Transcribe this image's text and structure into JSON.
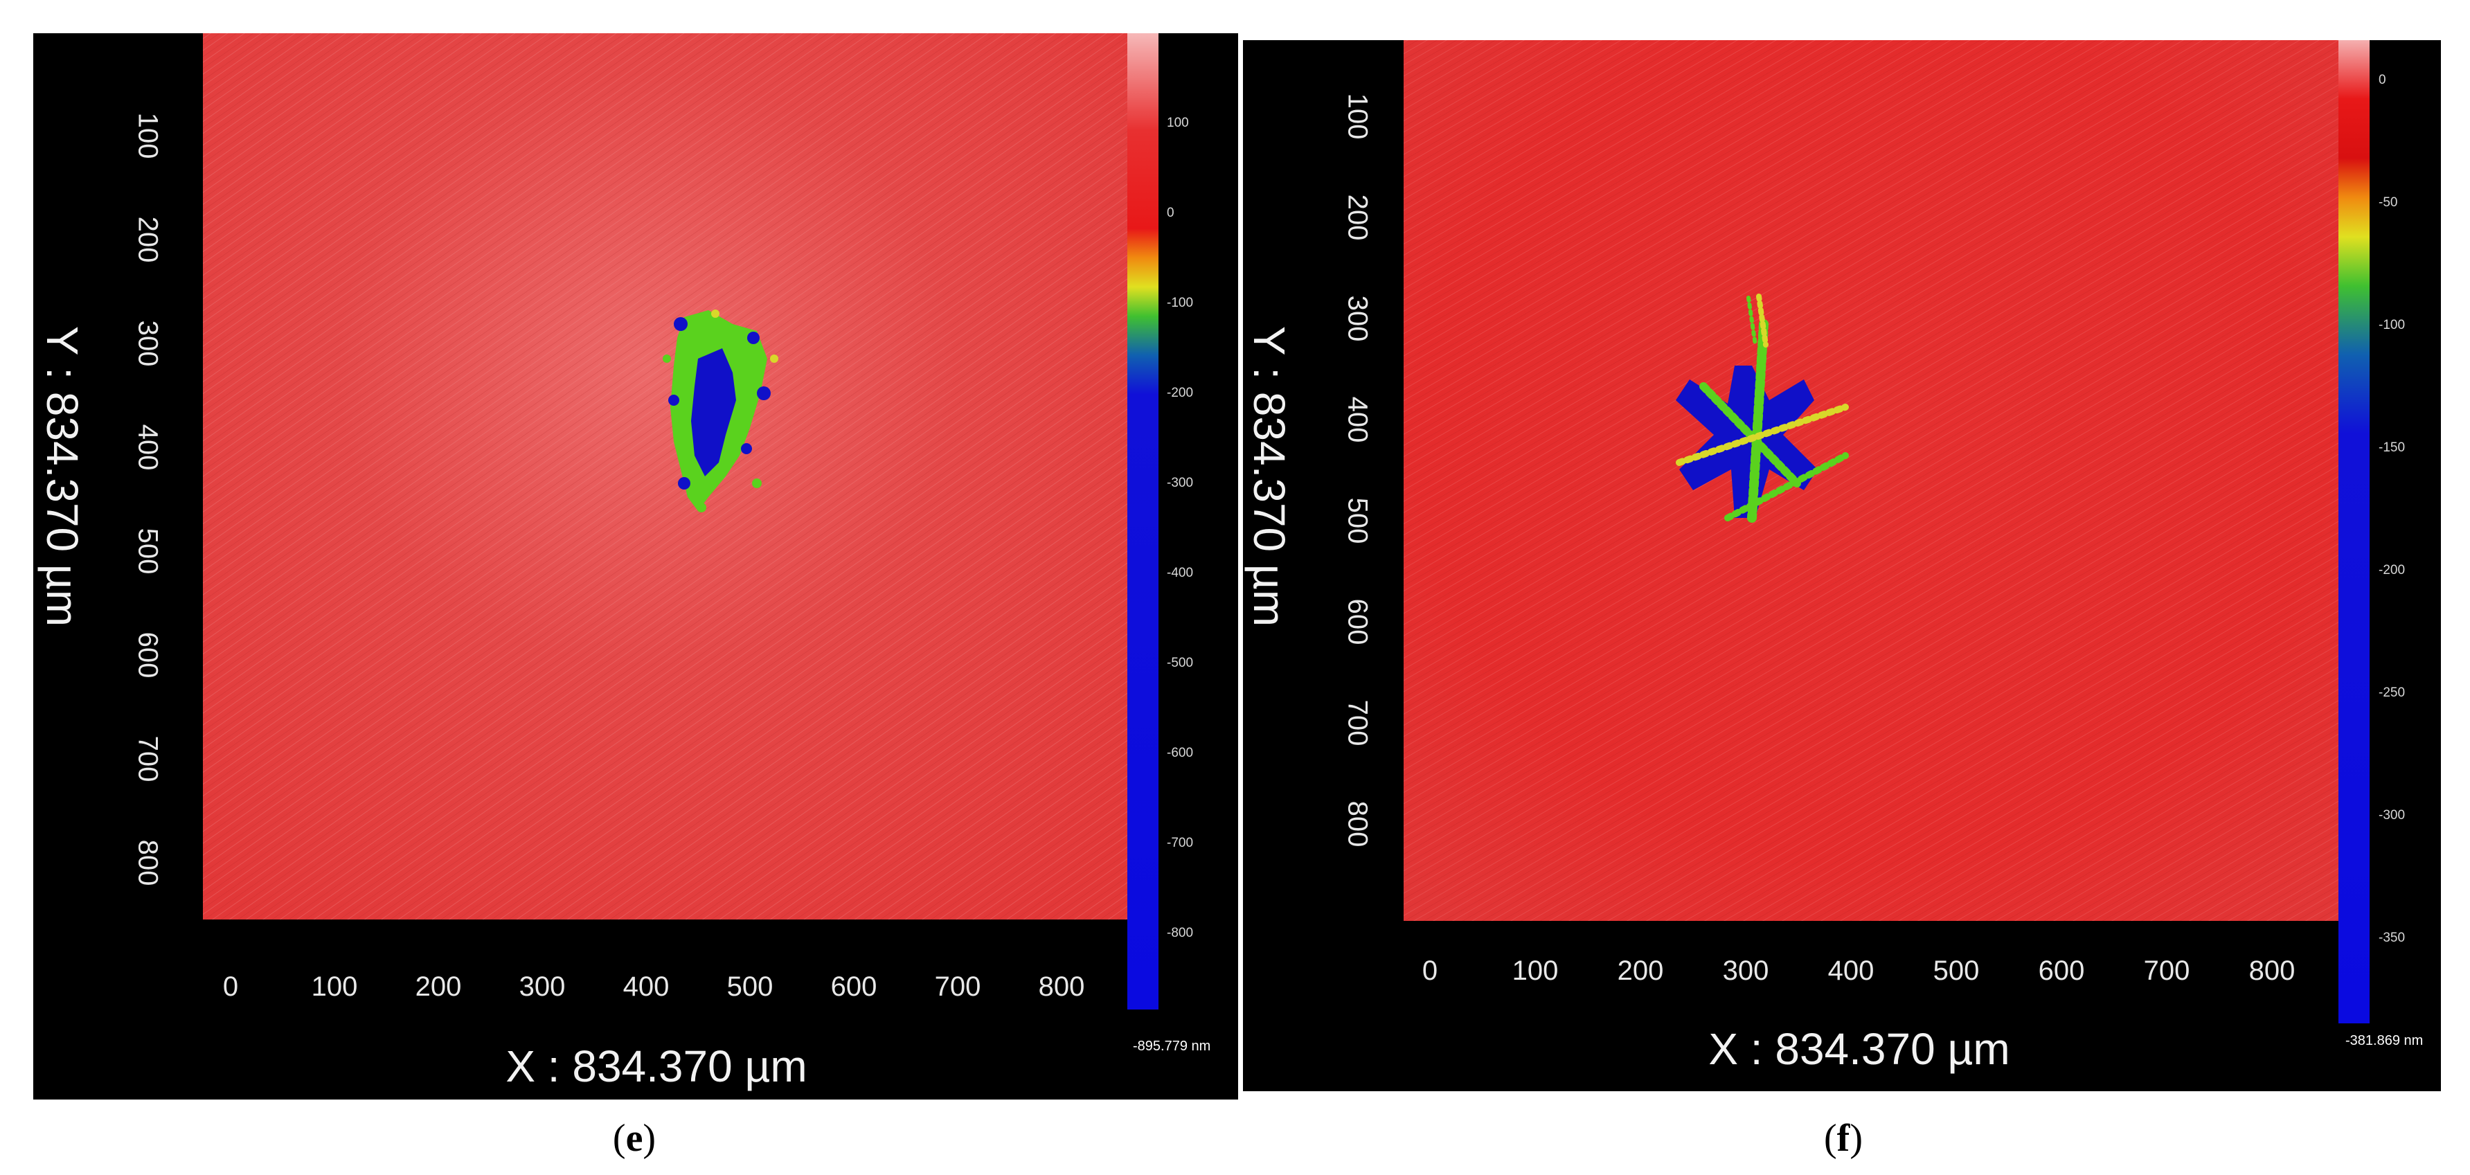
{
  "panels": [
    {
      "id": "e",
      "y_axis_label": "Y : 834.370 µm",
      "x_axis_label": "X : 834.370 µm",
      "y_ticks": [
        "100",
        "200",
        "300",
        "400",
        "500",
        "600",
        "700",
        "800"
      ],
      "x_ticks": [
        "0",
        "100",
        "200",
        "300",
        "400",
        "500",
        "600",
        "700",
        "800"
      ],
      "colorbar_ticks": [
        "100",
        "0",
        "-100",
        "-200",
        "-300",
        "-400",
        "-500",
        "-600",
        "-700",
        "-800"
      ],
      "colorbar_min": "-895.779 nm",
      "caption_open": "(",
      "caption_letter": "e",
      "caption_close": ")",
      "defect_shape": "irregular-pit"
    },
    {
      "id": "f",
      "y_axis_label": "Y : 834.370 µm",
      "x_axis_label": "X : 834.370 µm",
      "y_ticks": [
        "100",
        "200",
        "300",
        "400",
        "500",
        "600",
        "700",
        "800"
      ],
      "x_ticks": [
        "0",
        "100",
        "200",
        "300",
        "400",
        "500",
        "600",
        "700",
        "800"
      ],
      "colorbar_ticks": [
        "0",
        "-50",
        "-100",
        "-150",
        "-200",
        "-250",
        "-300",
        "-350"
      ],
      "colorbar_min": "-381.869 nm",
      "caption_open": "(",
      "caption_letter": "f",
      "caption_close": ")",
      "defect_shape": "star-cracks"
    }
  ],
  "colors": {
    "surface": "#e23a3a",
    "background": "#000000",
    "defect_blue": "#1010c8",
    "defect_green": "#5ad21e",
    "defect_yellow": "#d8d82a",
    "caption_text": "#000000"
  }
}
